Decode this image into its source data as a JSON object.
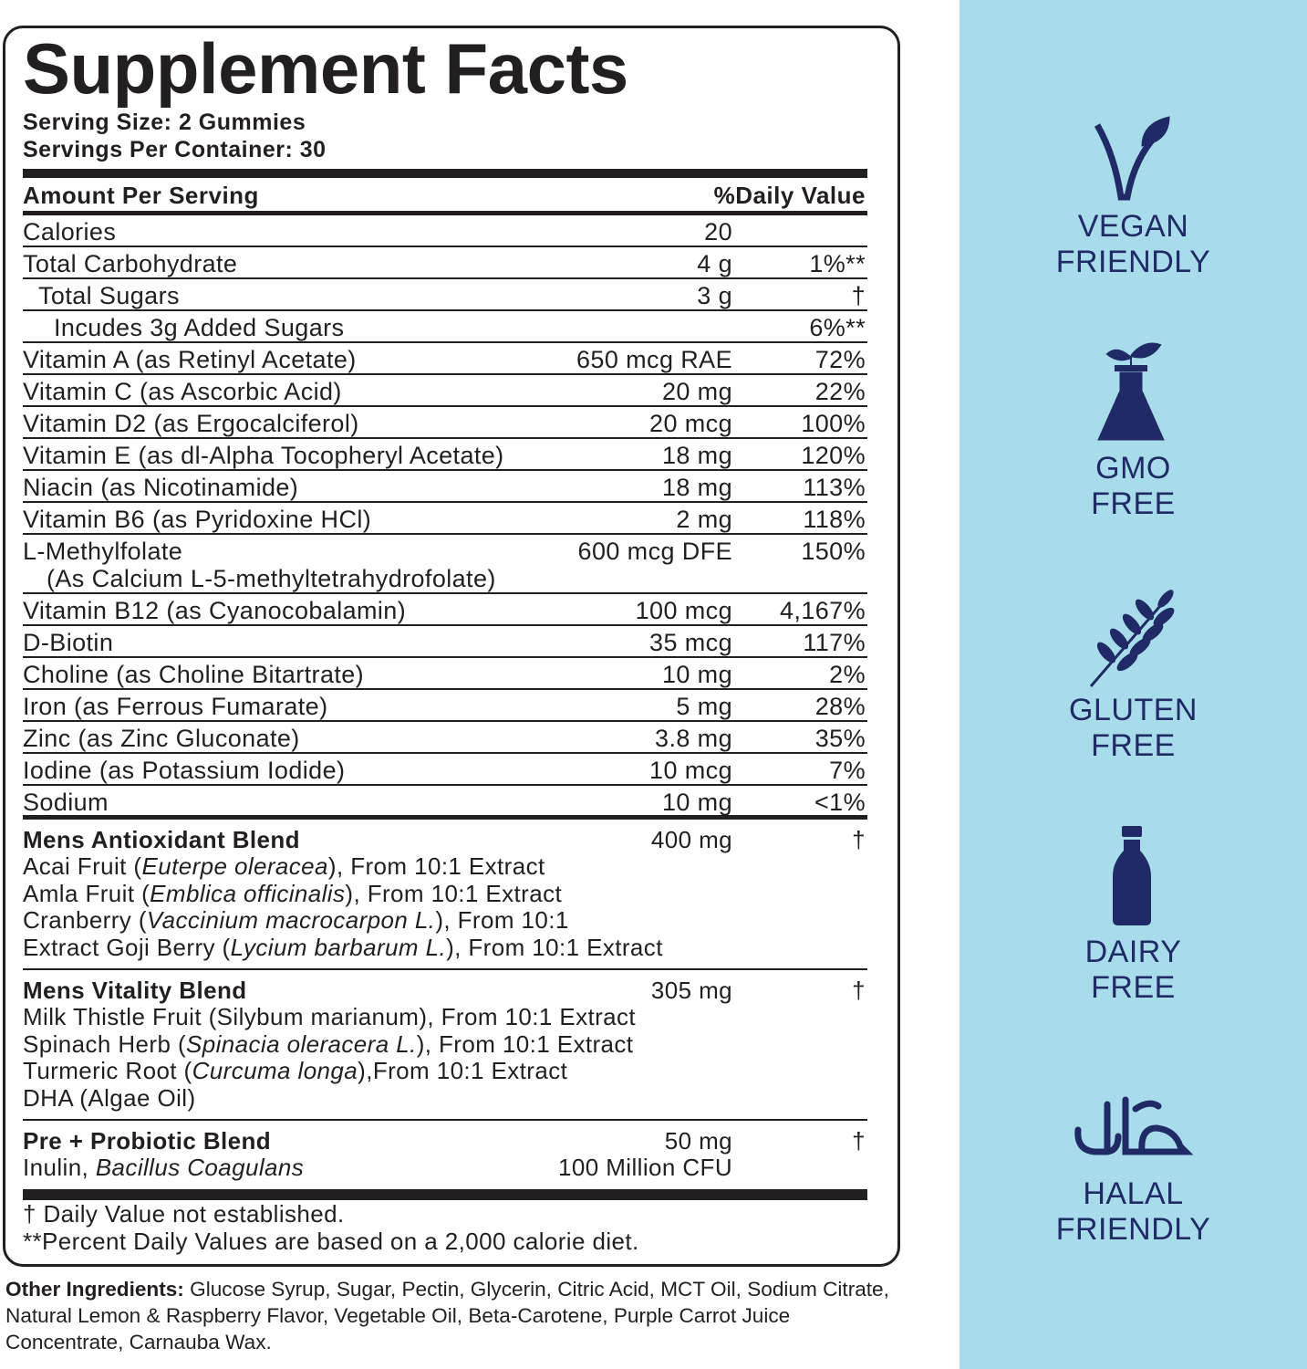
{
  "label": {
    "title": "Supplement Facts",
    "serving_size": "Serving Size: 2 Gummies",
    "servings_per_container": "Servings Per Container: 30",
    "header": {
      "left": "Amount Per Serving",
      "right": "%Daily Value"
    },
    "rows": [
      {
        "name": "Calories",
        "amount": "20"
      },
      {
        "name": "Total Carbohydrate",
        "amount": "4 g",
        "dv": "1%**"
      },
      {
        "name": "Total Sugars",
        "amount": "3 g",
        "dv": "†",
        "indent": 1
      },
      {
        "name": "Incudes 3g Added Sugars",
        "dv": "6%**",
        "indent": 2
      },
      {
        "name": "Vitamin A (as Retinyl Acetate)",
        "amount": "650 mcg RAE",
        "dv": "72%"
      },
      {
        "name": "Vitamin C (as Ascorbic Acid)",
        "amount": "20 mg",
        "dv": "22%"
      },
      {
        "name": "Vitamin D2 (as Ergocalciferol)",
        "amount": "20 mcg",
        "dv": "100%"
      },
      {
        "name": "Vitamin E (as dl-Alpha Tocopheryl Acetate)",
        "amount": "18 mg",
        "dv": "120%"
      },
      {
        "name": "Niacin (as Nicotinamide)",
        "amount": "18 mg",
        "dv": "113%"
      },
      {
        "name": "Vitamin B6 (as Pyridoxine HCl)",
        "amount": "2 mg",
        "dv": "118%"
      },
      {
        "name": "L-Methylfolate",
        "sub": "(As Calcium L-5-methyltetrahydrofolate)",
        "amount": "600 mcg DFE",
        "dv": "150%"
      },
      {
        "name": "Vitamin B12 (as Cyanocobalamin)",
        "amount": "100 mcg",
        "dv": "4,167%"
      },
      {
        "name": "D-Biotin",
        "amount": "35 mcg",
        "dv": "117%"
      },
      {
        "name": "Choline (as Choline Bitartrate)",
        "amount": "10 mg",
        "dv": "2%"
      },
      {
        "name": "Iron (as Ferrous Fumarate)",
        "amount": "5 mg",
        "dv": "28%"
      },
      {
        "name": "Zinc (as Zinc Gluconate)",
        "amount": "3.8 mg",
        "dv": "35%"
      },
      {
        "name": "Iodine (as Potassium Iodide)",
        "amount": "10 mcg",
        "dv": "7%"
      },
      {
        "name": "Sodium",
        "amount": "10 mg",
        "dv": "<1%"
      }
    ],
    "blends": [
      {
        "lines": [
          {
            "segments": [
              {
                "text": "Mens Antioxidant Blend",
                "bold": true
              }
            ],
            "amount": "400 mg",
            "dv": "†"
          },
          {
            "segments": [
              {
                "text": "Acai Fruit ("
              },
              {
                "text": "Euterpe oleracea",
                "italic": true
              },
              {
                "text": "), From 10:1 Extract"
              }
            ]
          },
          {
            "segments": [
              {
                "text": "Amla Fruit ("
              },
              {
                "text": "Emblica officinalis",
                "italic": true
              },
              {
                "text": "), From 10:1 Extract"
              }
            ]
          },
          {
            "segments": [
              {
                "text": "Cranberry ("
              },
              {
                "text": "Vaccinium macrocarpon L.",
                "italic": true
              },
              {
                "text": "), From 10:1"
              }
            ]
          },
          {
            "segments": [
              {
                "text": "Extract Goji Berry ("
              },
              {
                "text": "Lycium barbarum L.",
                "italic": true
              },
              {
                "text": "), From 10:1 Extract"
              }
            ]
          }
        ]
      },
      {
        "lines": [
          {
            "segments": [
              {
                "text": "Mens Vitality Blend",
                "bold": true
              }
            ],
            "amount": "305 mg",
            "dv": "†"
          },
          {
            "segments": [
              {
                "text": "Milk Thistle Fruit (Silybum marianum), From 10:1 Extract"
              }
            ]
          },
          {
            "segments": [
              {
                "text": "Spinach Herb ("
              },
              {
                "text": "Spinacia oleracera L.",
                "italic": true
              },
              {
                "text": "), From 10:1 Extract"
              }
            ]
          },
          {
            "segments": [
              {
                "text": "Turmeric Root ("
              },
              {
                "text": "Curcuma longa",
                "italic": true
              },
              {
                "text": "),From 10:1 Extract"
              }
            ]
          },
          {
            "segments": [
              {
                "text": "DHA (Algae Oil)"
              }
            ]
          }
        ]
      },
      {
        "lines": [
          {
            "segments": [
              {
                "text": "Pre + Probiotic Blend",
                "bold": true
              }
            ],
            "amount": "50 mg",
            "dv": "†"
          },
          {
            "segments": [
              {
                "text": "Inulin, "
              },
              {
                "text": "Bacillus Coagulans",
                "italic": true
              }
            ],
            "amount": "100 Million CFU"
          }
        ]
      }
    ],
    "footnotes": [
      "† Daily Value not established.",
      "**Percent Daily Values are based on a 2,000 calorie diet."
    ]
  },
  "other_ingredients": {
    "label": "Other Ingredients:",
    "text": "Glucose Syrup, Sugar, Pectin, Glycerin, Citric Acid, MCT Oil, Sodium Citrate, Natural Lemon & Raspberry Flavor, Vegetable Oil, Beta-Carotene, Purple Carrot Juice Concentrate, Carnauba Wax."
  },
  "badges": [
    {
      "lines": [
        "VEGAN",
        "FRIENDLY"
      ]
    },
    {
      "lines": [
        "GMO",
        "FREE"
      ]
    },
    {
      "lines": [
        "GLUTEN",
        "FREE"
      ]
    },
    {
      "lines": [
        "DAIRY",
        "FREE"
      ]
    },
    {
      "lines": [
        "HALAL",
        "FRIENDLY"
      ]
    }
  ]
}
